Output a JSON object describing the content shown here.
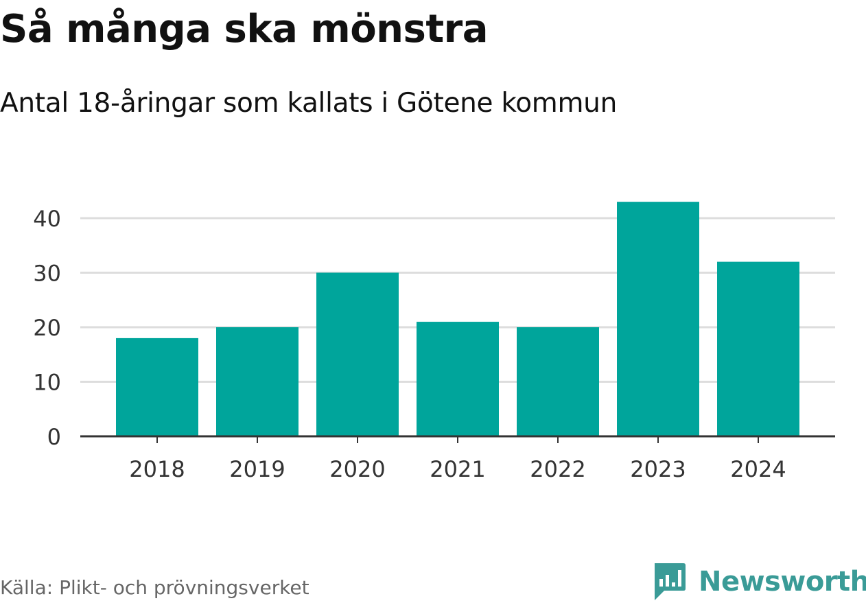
{
  "title": "Så många ska mönstra",
  "subtitle": "Antal 18-åringar som kallats i Götene kommun",
  "source": "Källa: Plikt- och prövningsverket",
  "brand": {
    "name": "Newsworthy",
    "icon": "newsworthy-logo-icon",
    "color": "#3a9b97"
  },
  "colors": {
    "bar": "#00a59b",
    "gridline": "#dddddd",
    "axis": "#333333",
    "tick_text": "#333333"
  },
  "chart_data": {
    "type": "bar",
    "categories": [
      "2018",
      "2019",
      "2020",
      "2021",
      "2022",
      "2023",
      "2024"
    ],
    "values": [
      18,
      20,
      30,
      21,
      20,
      43,
      32
    ],
    "yticks": [
      0,
      10,
      20,
      30,
      40
    ],
    "ylim": [
      0,
      43
    ],
    "grid": true,
    "legend": "none"
  }
}
